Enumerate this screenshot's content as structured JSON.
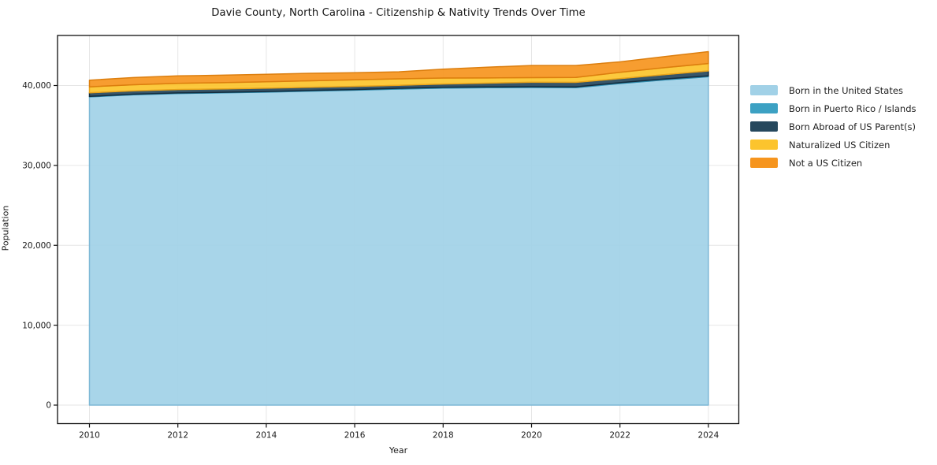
{
  "title": "Davie County, North Carolina - Citizenship & Nativity Trends Over Time",
  "axes": {
    "xlabel": "Year",
    "ylabel": "Population"
  },
  "chart_data": {
    "type": "area",
    "stacked": true,
    "title": "Davie County, North Carolina - Citizenship & Nativity Trends Over Time",
    "xlabel": "Year",
    "ylabel": "Population",
    "x": [
      2010,
      2011,
      2012,
      2013,
      2014,
      2015,
      2016,
      2017,
      2018,
      2019,
      2020,
      2021,
      2022,
      2023,
      2024
    ],
    "xticks": [
      2010,
      2012,
      2014,
      2016,
      2018,
      2020,
      2022,
      2024
    ],
    "yticks": [
      0,
      10000,
      20000,
      30000,
      40000
    ],
    "ylim": [
      -2500,
      46300
    ],
    "xlim": [
      2009.3,
      2024.7
    ],
    "grid": true,
    "legend_position": "right",
    "series": [
      {
        "name": "Born in the United States",
        "fill": "#A1D1E7",
        "edge": "#7EB8D6",
        "values": [
          38580,
          38850,
          39000,
          39080,
          39170,
          39300,
          39420,
          39560,
          39680,
          39720,
          39750,
          39730,
          40250,
          40700,
          41100
        ]
      },
      {
        "name": "Born in Puerto Rico / Islands",
        "fill": "#3CA1C3",
        "edge": "#2E8BAD",
        "values": [
          60,
          60,
          70,
          70,
          80,
          80,
          80,
          90,
          90,
          100,
          100,
          100,
          110,
          110,
          100
        ]
      },
      {
        "name": "Born Abroad of US Parent(s)",
        "fill": "#26485D",
        "edge": "#142C3D",
        "values": [
          440,
          430,
          430,
          420,
          410,
          400,
          390,
          380,
          420,
          480,
          550,
          560,
          500,
          550,
          620
        ]
      },
      {
        "name": "Naturalized US Citizen",
        "fill": "#FCC42D",
        "edge": "#EAA41A",
        "values": [
          750,
          760,
          780,
          790,
          800,
          810,
          820,
          810,
          750,
          650,
          590,
          620,
          800,
          870,
          930
        ]
      },
      {
        "name": "Not a US Citizen",
        "fill": "#F6951E",
        "edge": "#DC7E0E",
        "values": [
          840,
          900,
          920,
          930,
          950,
          940,
          900,
          880,
          1100,
          1350,
          1520,
          1500,
          1300,
          1380,
          1490
        ]
      }
    ]
  },
  "style": {
    "grid_color": "#E6E6E6",
    "spine_color": "#0F0F0F",
    "tick_label_color": "#1A1A1A",
    "background": "#FFFFFF"
  }
}
